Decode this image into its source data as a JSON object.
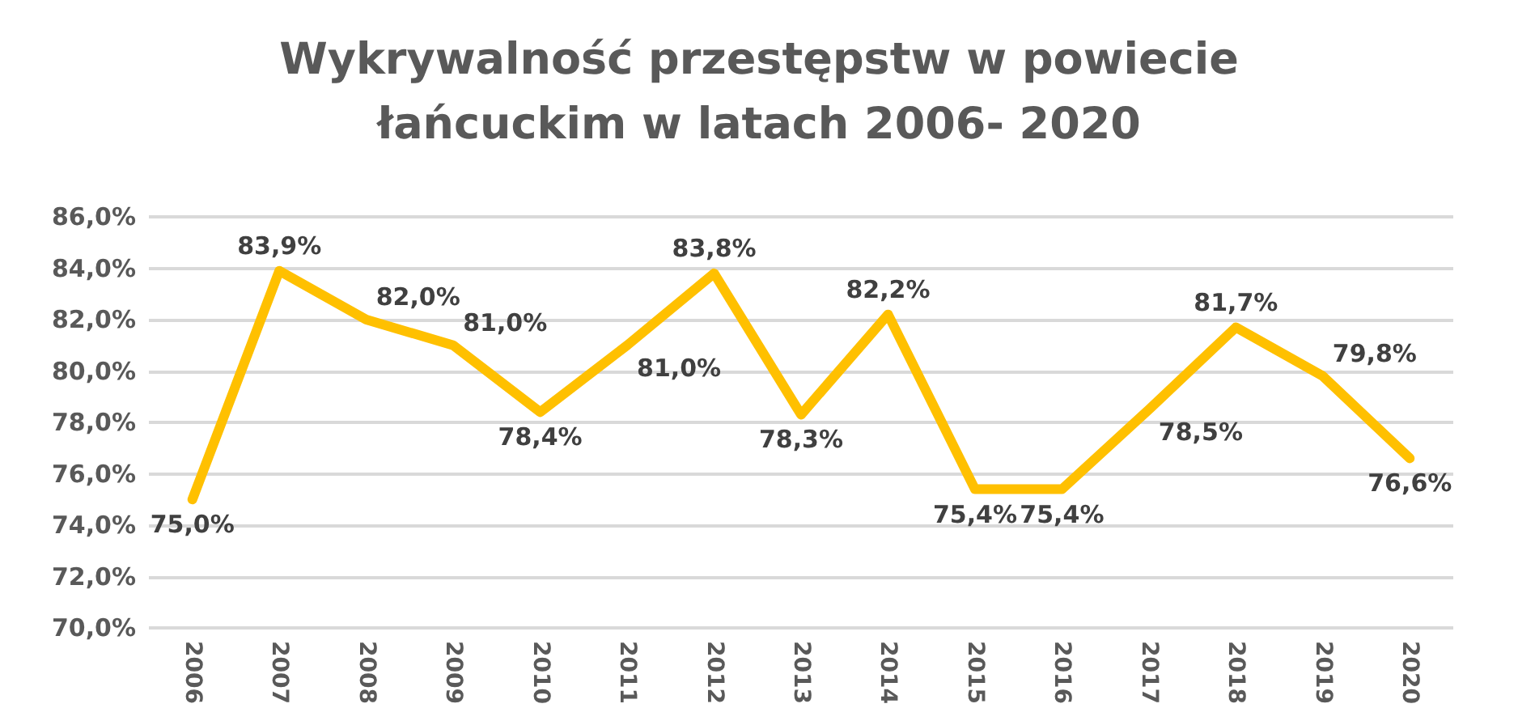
{
  "chart_data": {
    "type": "line",
    "title": "Wykrywalność przestępstw w powiecie\nłańcuckim w latach 2006- 2020",
    "categories": [
      "2006",
      "2007",
      "2008",
      "2009",
      "2010",
      "2011",
      "2012",
      "2013",
      "2014",
      "2015",
      "2016",
      "2017",
      "2018",
      "2019",
      "2020"
    ],
    "series": [
      {
        "color": "#ffc000",
        "values": [
          75.0,
          83.9,
          82.0,
          81.0,
          78.4,
          81.0,
          83.8,
          78.3,
          82.2,
          75.4,
          75.4,
          78.5,
          81.7,
          79.8,
          76.6
        ],
        "value_labels": [
          "75,0%",
          "83,9%",
          "82,0%",
          "81,0%",
          "78,4%",
          "81,0%",
          "83,8%",
          "78,3%",
          "82,2%",
          "75,4%",
          "75,4%",
          "78,5%",
          "81,7%",
          "79,8%",
          "76,6%"
        ]
      }
    ],
    "ylim": [
      70,
      86
    ],
    "yticks": [
      {
        "value": 70,
        "label": "70,0%"
      },
      {
        "value": 72,
        "label": "72,0%"
      },
      {
        "value": 74,
        "label": "74,0%"
      },
      {
        "value": 76,
        "label": "76,0%"
      },
      {
        "value": 78,
        "label": "78,0%"
      },
      {
        "value": 80,
        "label": "80,0%"
      },
      {
        "value": 82,
        "label": "82,0%"
      },
      {
        "value": 84,
        "label": "84,0%"
      },
      {
        "value": 86,
        "label": "86,0%"
      }
    ],
    "grid": "y",
    "marker": "none",
    "line_style": "solid"
  }
}
